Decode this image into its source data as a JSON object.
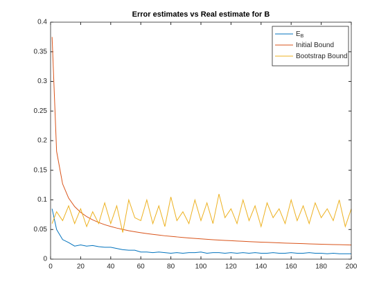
{
  "chart_data": {
    "type": "line",
    "title": "Error estimates vs Real estimate for B",
    "x": [
      1,
      4,
      8,
      12,
      16,
      20,
      24,
      28,
      32,
      36,
      40,
      44,
      48,
      52,
      56,
      60,
      64,
      68,
      72,
      76,
      80,
      84,
      88,
      92,
      96,
      100,
      104,
      108,
      112,
      116,
      120,
      124,
      128,
      132,
      136,
      140,
      144,
      148,
      152,
      156,
      160,
      164,
      168,
      172,
      176,
      180,
      184,
      188,
      192,
      196,
      200
    ],
    "series": [
      {
        "name": "E",
        "name_subscript": "B",
        "color": "#0072bd",
        "values": [
          0.085,
          0.05,
          0.033,
          0.028,
          0.022,
          0.024,
          0.022,
          0.023,
          0.021,
          0.02,
          0.02,
          0.018,
          0.016,
          0.015,
          0.015,
          0.012,
          0.012,
          0.011,
          0.012,
          0.011,
          0.01,
          0.011,
          0.01,
          0.011,
          0.011,
          0.012,
          0.01,
          0.011,
          0.011,
          0.01,
          0.011,
          0.01,
          0.011,
          0.01,
          0.011,
          0.01,
          0.01,
          0.011,
          0.01,
          0.01,
          0.011,
          0.01,
          0.01,
          0.011,
          0.01,
          0.01,
          0.009,
          0.01,
          0.009,
          0.009,
          0.009
        ]
      },
      {
        "name": "Initial Bound",
        "color": "#d95319",
        "values": [
          0.375,
          0.182,
          0.127,
          0.103,
          0.0887,
          0.079,
          0.0718,
          0.0663,
          0.0619,
          0.0581,
          0.0551,
          0.0524,
          0.0501,
          0.048,
          0.0462,
          0.0446,
          0.0431,
          0.0418,
          0.0406,
          0.0394,
          0.0384,
          0.0375,
          0.0366,
          0.0357,
          0.0349,
          0.0342,
          0.0335,
          0.0328,
          0.0322,
          0.0316,
          0.0311,
          0.0306,
          0.0301,
          0.0296,
          0.0291,
          0.0287,
          0.0283,
          0.0279,
          0.0275,
          0.0271,
          0.0268,
          0.0264,
          0.0261,
          0.0258,
          0.0255,
          0.0252,
          0.0249,
          0.0246,
          0.0244,
          0.0241,
          0.0239
        ]
      },
      {
        "name": "Bootstrap Bound",
        "color": "#edb120",
        "values": [
          0.06,
          0.08,
          0.065,
          0.09,
          0.06,
          0.085,
          0.055,
          0.08,
          0.06,
          0.095,
          0.06,
          0.09,
          0.045,
          0.1,
          0.07,
          0.065,
          0.1,
          0.06,
          0.09,
          0.055,
          0.105,
          0.065,
          0.08,
          0.06,
          0.1,
          0.065,
          0.095,
          0.06,
          0.11,
          0.07,
          0.085,
          0.06,
          0.1,
          0.065,
          0.09,
          0.055,
          0.095,
          0.07,
          0.085,
          0.06,
          0.1,
          0.065,
          0.09,
          0.06,
          0.095,
          0.07,
          0.085,
          0.065,
          0.1,
          0.055,
          0.085
        ]
      }
    ],
    "xlim": [
      0,
      200
    ],
    "xticks": [
      0,
      20,
      40,
      60,
      80,
      100,
      120,
      140,
      160,
      180,
      200
    ],
    "ylim": [
      0,
      0.4
    ],
    "yticks": [
      0,
      0.05,
      0.1,
      0.15,
      0.2,
      0.25,
      0.3,
      0.35,
      0.4
    ],
    "legend": "upper right"
  }
}
